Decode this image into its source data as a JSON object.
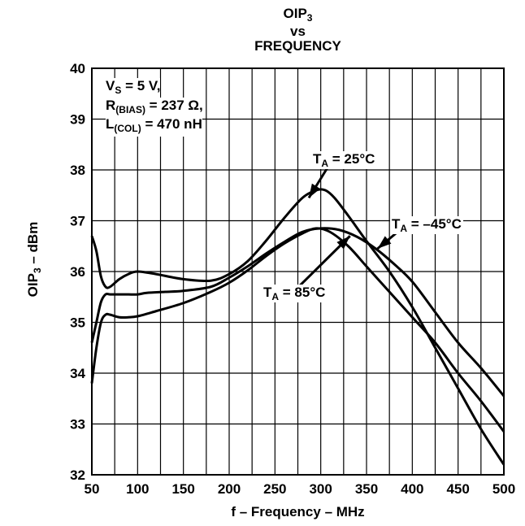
{
  "chart_data": {
    "type": "line",
    "title_line1": "OIP",
    "title_line1_sub": "3",
    "title_line2": "vs",
    "title_line3": "FREQUENCY",
    "xlabel": "f – Frequency – MHz",
    "ylabel": "OIP",
    "ylabel_sub": "3",
    "ylabel_suffix": " – dBm",
    "xlim": [
      50,
      500
    ],
    "ylim": [
      32,
      40
    ],
    "xticks": [
      50,
      100,
      150,
      200,
      250,
      300,
      350,
      400,
      450,
      500
    ],
    "yticks": [
      32,
      33,
      34,
      35,
      36,
      37,
      38,
      39,
      40
    ],
    "x_grid_step": 25,
    "grid": true,
    "conditions": [
      {
        "main": "V",
        "sub": "S",
        "rest": " = 5 V,"
      },
      {
        "main": "R",
        "sub": "(BIAS)",
        "rest": " = 237 Ω,"
      },
      {
        "main": "L",
        "sub": "(COL)",
        "rest": " = 470 nH"
      }
    ],
    "series": [
      {
        "name": "T_A = 25°C",
        "label_main": "T",
        "label_sub": "A",
        "label_rest": " = 25°C",
        "points": [
          [
            50,
            36.7
          ],
          [
            55,
            36.4
          ],
          [
            60,
            35.9
          ],
          [
            65,
            35.7
          ],
          [
            70,
            35.7
          ],
          [
            80,
            35.85
          ],
          [
            90,
            35.95
          ],
          [
            100,
            36.0
          ],
          [
            120,
            35.95
          ],
          [
            150,
            35.85
          ],
          [
            180,
            35.82
          ],
          [
            200,
            35.95
          ],
          [
            220,
            36.2
          ],
          [
            240,
            36.6
          ],
          [
            260,
            37.05
          ],
          [
            280,
            37.45
          ],
          [
            295,
            37.6
          ],
          [
            305,
            37.6
          ],
          [
            315,
            37.45
          ],
          [
            330,
            37.1
          ],
          [
            350,
            36.6
          ],
          [
            375,
            36.0
          ],
          [
            400,
            35.3
          ],
          [
            425,
            34.5
          ],
          [
            450,
            33.7
          ],
          [
            475,
            32.9
          ],
          [
            500,
            32.2
          ]
        ],
        "arrow_tip": [
          287,
          37.45
        ]
      },
      {
        "name": "T_A = –45°C",
        "label_main": "T",
        "label_sub": "A",
        "label_rest": " = –45°C",
        "points": [
          [
            50,
            34.6
          ],
          [
            55,
            35.0
          ],
          [
            60,
            35.4
          ],
          [
            65,
            35.55
          ],
          [
            70,
            35.55
          ],
          [
            80,
            35.55
          ],
          [
            90,
            35.55
          ],
          [
            100,
            35.55
          ],
          [
            110,
            35.58
          ],
          [
            130,
            35.6
          ],
          [
            150,
            35.62
          ],
          [
            180,
            35.7
          ],
          [
            200,
            35.88
          ],
          [
            220,
            36.1
          ],
          [
            240,
            36.35
          ],
          [
            260,
            36.58
          ],
          [
            280,
            36.78
          ],
          [
            300,
            36.85
          ],
          [
            320,
            36.82
          ],
          [
            340,
            36.68
          ],
          [
            360,
            36.45
          ],
          [
            380,
            36.15
          ],
          [
            400,
            35.8
          ],
          [
            425,
            35.2
          ],
          [
            450,
            34.6
          ],
          [
            475,
            34.1
          ],
          [
            500,
            33.55
          ]
        ],
        "arrow_tip": [
          362,
          36.45
        ]
      },
      {
        "name": "T_A = 85°C",
        "label_main": "T",
        "label_sub": "A",
        "label_rest": " = 85°C",
        "points": [
          [
            50,
            33.8
          ],
          [
            55,
            34.5
          ],
          [
            60,
            35.0
          ],
          [
            65,
            35.15
          ],
          [
            70,
            35.15
          ],
          [
            80,
            35.1
          ],
          [
            90,
            35.1
          ],
          [
            100,
            35.12
          ],
          [
            120,
            35.22
          ],
          [
            150,
            35.38
          ],
          [
            180,
            35.6
          ],
          [
            200,
            35.78
          ],
          [
            220,
            36.02
          ],
          [
            240,
            36.3
          ],
          [
            260,
            36.55
          ],
          [
            280,
            36.75
          ],
          [
            295,
            36.85
          ],
          [
            310,
            36.78
          ],
          [
            330,
            36.5
          ],
          [
            350,
            36.1
          ],
          [
            375,
            35.6
          ],
          [
            400,
            35.1
          ],
          [
            425,
            34.6
          ],
          [
            450,
            34.0
          ],
          [
            475,
            33.45
          ],
          [
            500,
            32.85
          ]
        ],
        "arrow_tip": [
          332,
          36.7
        ]
      }
    ]
  }
}
